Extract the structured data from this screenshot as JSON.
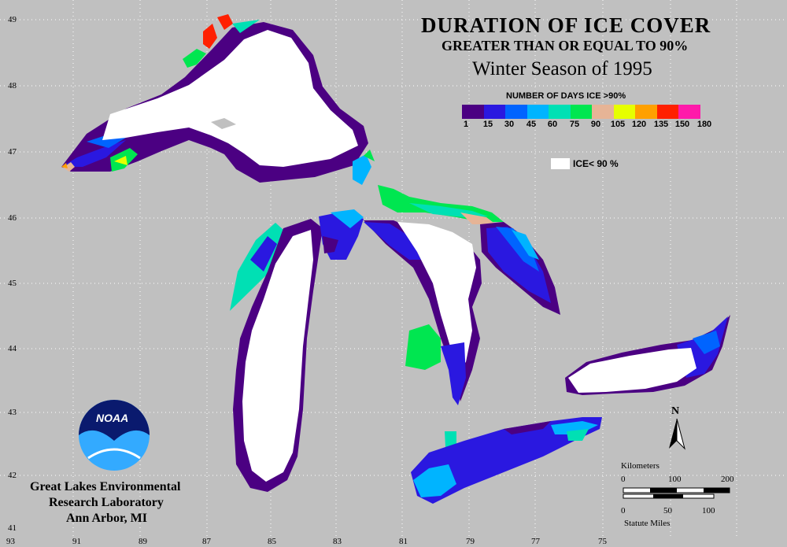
{
  "title": {
    "line1": "DURATION OF ICE COVER",
    "line2": "GREATER THAN OR EQUAL TO 90%",
    "line3": "Winter Season of 1995"
  },
  "legend": {
    "title": "NUMBER OF DAYS ICE >90%",
    "colors": [
      "#4b0082",
      "#2a18e0",
      "#0064ff",
      "#00b4ff",
      "#00e0b4",
      "#00e650",
      "#e6b496",
      "#e6ff00",
      "#ffa000",
      "#ff2000",
      "#ff1aaa"
    ],
    "ticks": [
      "1",
      "15",
      "30",
      "45",
      "60",
      "75",
      "90",
      "105",
      "120",
      "135",
      "150",
      "180"
    ],
    "ice_label": "ICE< 90 %"
  },
  "grid": {
    "lat_labels": [
      "49",
      "48",
      "47",
      "46",
      "45",
      "44",
      "43",
      "42",
      "41"
    ],
    "lon_labels": [
      "93",
      "91",
      "89",
      "87",
      "85",
      "83",
      "81",
      "79",
      "77",
      "75"
    ]
  },
  "north_arrow": "N",
  "scale": {
    "km_title": "Kilometers",
    "km_ticks": [
      "0",
      "100",
      "200"
    ],
    "mi_ticks": [
      "0",
      "50",
      "100"
    ],
    "mi_title": "Statute Miles"
  },
  "logo": {
    "text": "NOAA"
  },
  "credit": {
    "line1": "Great Lakes Environmental",
    "line2": "Research Laboratory",
    "line3": "Ann Arbor, MI"
  },
  "colors": {
    "land": "#c0c0c0",
    "ice_less_90": "#ffffff"
  }
}
